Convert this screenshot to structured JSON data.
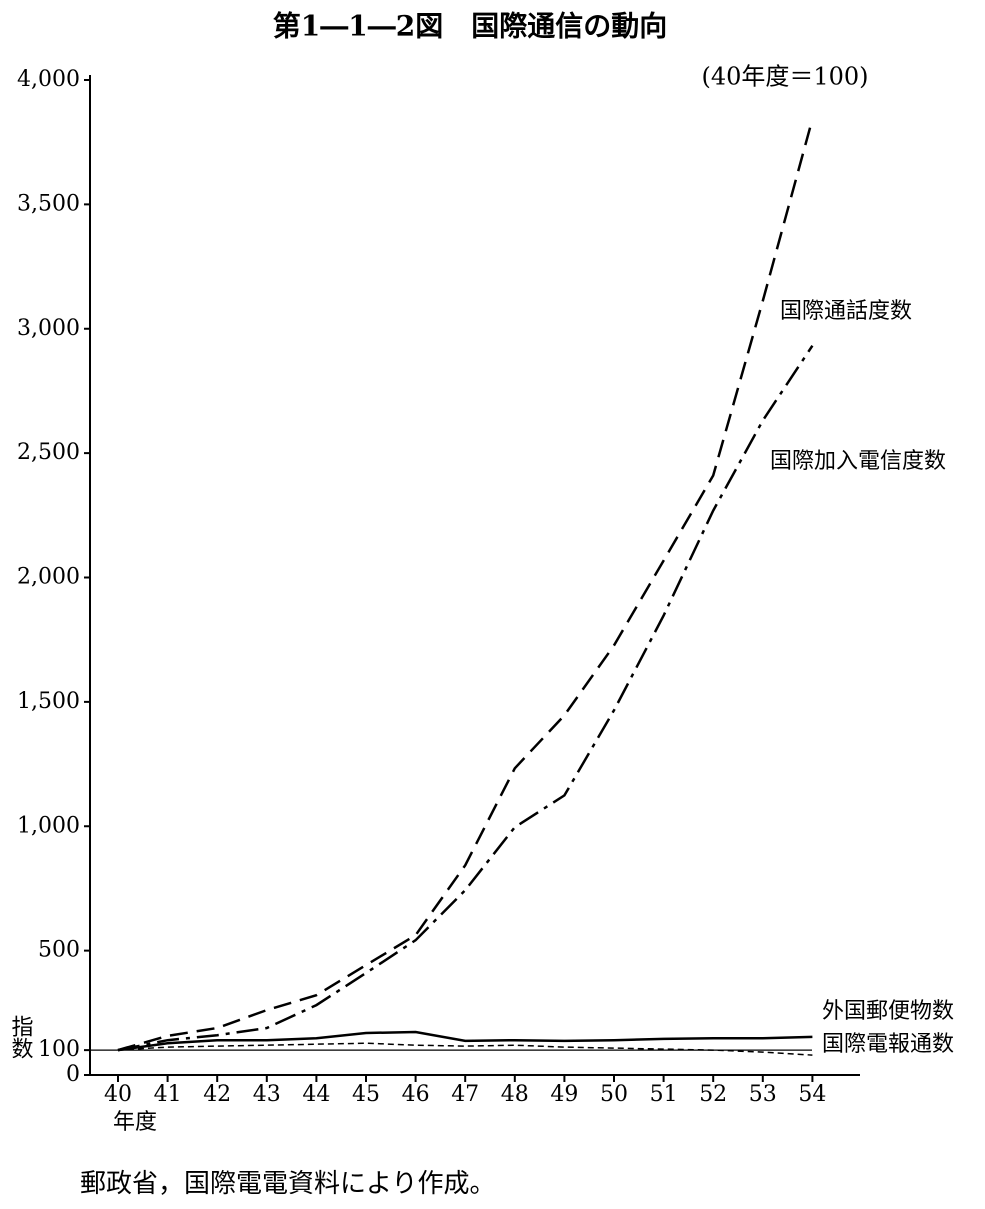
{
  "chart_data": {
    "type": "line",
    "title": "第1―1―2図　国際通信の動向",
    "subtitle": "(40年度＝100)",
    "source": "郵政省，国際電電資料により作成。",
    "x_label": "年度",
    "y_label": "指数",
    "categories": [
      "40",
      "41",
      "42",
      "43",
      "44",
      "45",
      "46",
      "47",
      "48",
      "49",
      "50",
      "51",
      "52",
      "53",
      "54"
    ],
    "ylim": [
      0,
      4000
    ],
    "yticks": [
      0,
      100,
      500,
      {
        "value": 1000,
        "label": "1,000"
      },
      {
        "value": 1500,
        "label": "1,500"
      },
      {
        "value": 2000,
        "label": "2,000"
      },
      {
        "value": 2500,
        "label": "2,500"
      },
      {
        "value": 3000,
        "label": "3,000"
      },
      {
        "value": 3500,
        "label": "3,500"
      },
      {
        "value": 4000,
        "label": "4,000"
      }
    ],
    "reference_line": 100,
    "series": [
      {
        "name": "国際通話度数",
        "color": "#000000",
        "style": "dashed",
        "values": [
          100,
          157,
          189,
          261,
          321,
          442,
          562,
          843,
          1233,
          1446,
          1727,
          2068,
          2410,
          3112,
          3843
        ]
      },
      {
        "name": "国際加入電信度数",
        "color": "#000000",
        "style": "dashdot",
        "values": [
          100,
          140,
          160,
          189,
          281,
          410,
          542,
          743,
          996,
          1124,
          1466,
          1847,
          2269,
          2631,
          2932
        ]
      },
      {
        "name": "外国郵便物数",
        "color": "#000000",
        "style": "solid",
        "values": [
          100,
          128,
          140,
          140,
          148,
          169,
          173,
          137,
          140,
          137,
          140,
          145,
          148,
          148,
          153
        ]
      },
      {
        "name": "国際電報通数",
        "color": "#000000",
        "style": "dotted",
        "values": [
          100,
          112,
          116,
          120,
          124,
          128,
          120,
          116,
          120,
          112,
          108,
          104,
          100,
          92,
          80
        ]
      }
    ]
  }
}
